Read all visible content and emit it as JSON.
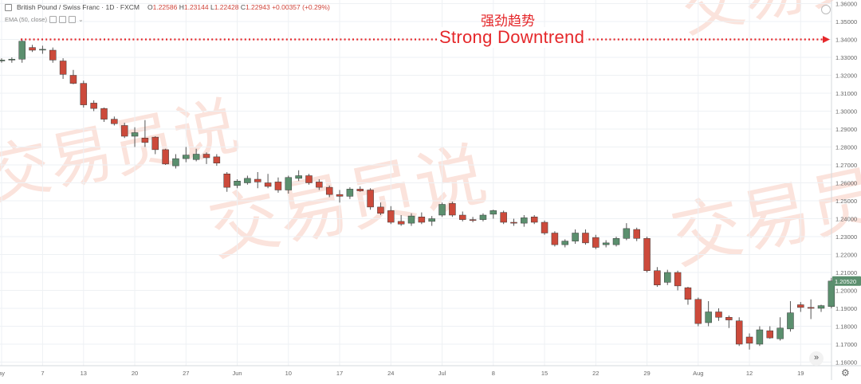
{
  "header": {
    "symbol": "British Pound / Swiss Franc · 1D · FXCM",
    "open_label": "O",
    "open": "1.22586",
    "high_label": "H",
    "high": "1.23144",
    "low_label": "L",
    "low": "1.22428",
    "close_label": "C",
    "close": "1.22943",
    "change": "+0.00357 (+0.29%)"
  },
  "indicator": {
    "label": "EMA (50, close)"
  },
  "annotation": {
    "chinese": "强劲趋势",
    "english": "Strong Downtrend"
  },
  "watermark": {
    "text": "交易员说"
  },
  "colors": {
    "up": "#5b8f6e",
    "down": "#cc4a3b",
    "accent": "#e5272a",
    "grid": "#eef1f4",
    "axis_text": "#666666",
    "price_tag_bg": "#5b8f6e"
  },
  "icons": {
    "nav": "double-chevron-right-icon",
    "settings": "gear-icon"
  },
  "nav_label": "»",
  "settings_label": "⚙",
  "chart_data": {
    "type": "candlestick",
    "title": "British Pound / Swiss Franc · 1D · FXCM",
    "y_ticks": [
      "1.36000",
      "1.35000",
      "1.34000",
      "1.33000",
      "1.32000",
      "1.31000",
      "1.30000",
      "1.29000",
      "1.28000",
      "1.27000",
      "1.26000",
      "1.25000",
      "1.24000",
      "1.23000",
      "1.22000",
      "1.21000",
      "1.20000",
      "1.19000",
      "1.18000",
      "1.17000",
      "1.16000"
    ],
    "ylim": [
      1.158,
      1.362
    ],
    "x_ticks": [
      {
        "label": "ay",
        "idx": 0
      },
      {
        "label": "7",
        "idx": 4
      },
      {
        "label": "13",
        "idx": 8
      },
      {
        "label": "20",
        "idx": 13
      },
      {
        "label": "27",
        "idx": 18
      },
      {
        "label": "Jun",
        "idx": 23
      },
      {
        "label": "10",
        "idx": 28
      },
      {
        "label": "17",
        "idx": 33
      },
      {
        "label": "24",
        "idx": 38
      },
      {
        "label": "Jul",
        "idx": 43
      },
      {
        "label": "8",
        "idx": 48
      },
      {
        "label": "15",
        "idx": 53
      },
      {
        "label": "22",
        "idx": 58
      },
      {
        "label": "29",
        "idx": 63
      },
      {
        "label": "Aug",
        "idx": 68
      },
      {
        "label": "12",
        "idx": 73
      },
      {
        "label": "19",
        "idx": 78
      }
    ],
    "last_price": "1.20520",
    "annotation": "Strong Downtrend",
    "candles": [
      [
        1.328,
        1.3295,
        1.327,
        1.3285
      ],
      [
        1.3285,
        1.33,
        1.327,
        1.329
      ],
      [
        1.329,
        1.3405,
        1.327,
        1.339
      ],
      [
        1.3355,
        1.337,
        1.333,
        1.334
      ],
      [
        1.3345,
        1.3365,
        1.332,
        1.3345
      ],
      [
        1.334,
        1.3355,
        1.327,
        1.3285
      ],
      [
        1.328,
        1.3295,
        1.318,
        1.3205
      ],
      [
        1.32,
        1.323,
        1.315,
        1.3155
      ],
      [
        1.3155,
        1.317,
        1.302,
        1.3035
      ],
      [
        1.3045,
        1.306,
        1.3,
        1.3015
      ],
      [
        1.3015,
        1.302,
        1.294,
        1.2955
      ],
      [
        1.2955,
        1.297,
        1.292,
        1.293
      ],
      [
        1.292,
        1.2935,
        1.285,
        1.286
      ],
      [
        1.286,
        1.291,
        1.28,
        1.288
      ],
      [
        1.285,
        1.295,
        1.28,
        1.2825
      ],
      [
        1.2855,
        1.286,
        1.276,
        1.2785
      ],
      [
        1.2785,
        1.279,
        1.27,
        1.2705
      ],
      [
        1.2695,
        1.276,
        1.268,
        1.2735
      ],
      [
        1.2735,
        1.28,
        1.2715,
        1.2755
      ],
      [
        1.273,
        1.279,
        1.272,
        1.276
      ],
      [
        1.276,
        1.277,
        1.2705,
        1.274
      ],
      [
        1.2745,
        1.276,
        1.2695,
        1.271
      ],
      [
        1.265,
        1.266,
        1.255,
        1.2575
      ],
      [
        1.2585,
        1.262,
        1.257,
        1.261
      ],
      [
        1.26,
        1.264,
        1.259,
        1.2625
      ],
      [
        1.262,
        1.266,
        1.257,
        1.2605
      ],
      [
        1.26,
        1.265,
        1.257,
        1.258
      ],
      [
        1.2605,
        1.263,
        1.2545,
        1.256
      ],
      [
        1.256,
        1.264,
        1.254,
        1.263
      ],
      [
        1.2625,
        1.267,
        1.261,
        1.264
      ],
      [
        1.264,
        1.265,
        1.259,
        1.26
      ],
      [
        1.2605,
        1.262,
        1.256,
        1.2575
      ],
      [
        1.2575,
        1.2585,
        1.252,
        1.2535
      ],
      [
        1.2535,
        1.256,
        1.249,
        1.2525
      ],
      [
        1.2525,
        1.2575,
        1.251,
        1.2565
      ],
      [
        1.2565,
        1.258,
        1.255,
        1.2555
      ],
      [
        1.256,
        1.257,
        1.245,
        1.2465
      ],
      [
        1.2465,
        1.249,
        1.242,
        1.243
      ],
      [
        1.2445,
        1.247,
        1.237,
        1.238
      ],
      [
        1.2385,
        1.242,
        1.236,
        1.237
      ],
      [
        1.2375,
        1.243,
        1.236,
        1.2415
      ],
      [
        1.241,
        1.2435,
        1.237,
        1.238
      ],
      [
        1.2385,
        1.2415,
        1.236,
        1.24
      ],
      [
        1.242,
        1.249,
        1.241,
        1.248
      ],
      [
        1.2485,
        1.2495,
        1.241,
        1.242
      ],
      [
        1.242,
        1.244,
        1.2385,
        1.2395
      ],
      [
        1.2395,
        1.241,
        1.238,
        1.239
      ],
      [
        1.2395,
        1.243,
        1.2385,
        1.242
      ],
      [
        1.2425,
        1.245,
        1.24,
        1.2445
      ],
      [
        1.2435,
        1.2445,
        1.237,
        1.238
      ],
      [
        1.238,
        1.24,
        1.236,
        1.2375
      ],
      [
        1.2375,
        1.242,
        1.2355,
        1.2405
      ],
      [
        1.241,
        1.242,
        1.237,
        1.238
      ],
      [
        1.238,
        1.239,
        1.231,
        1.232
      ],
      [
        1.232,
        1.233,
        1.2245,
        1.2255
      ],
      [
        1.2255,
        1.2285,
        1.224,
        1.2275
      ],
      [
        1.2275,
        1.234,
        1.226,
        1.232
      ],
      [
        1.232,
        1.234,
        1.2255,
        1.2265
      ],
      [
        1.2295,
        1.231,
        1.223,
        1.224
      ],
      [
        1.2255,
        1.228,
        1.224,
        1.2265
      ],
      [
        1.2255,
        1.23,
        1.2245,
        1.229
      ],
      [
        1.229,
        1.2375,
        1.228,
        1.2345
      ],
      [
        1.234,
        1.235,
        1.2275,
        1.229
      ],
      [
        1.229,
        1.23,
        1.21,
        1.211
      ],
      [
        1.211,
        1.213,
        1.202,
        1.203
      ],
      [
        1.2045,
        1.2115,
        1.203,
        1.21
      ],
      [
        1.21,
        1.211,
        1.2,
        1.2025
      ],
      [
        1.2015,
        1.202,
        1.192,
        1.195
      ],
      [
        1.195,
        1.196,
        1.18,
        1.1815
      ],
      [
        1.182,
        1.194,
        1.18,
        1.188
      ],
      [
        1.188,
        1.19,
        1.183,
        1.185
      ],
      [
        1.185,
        1.186,
        1.179,
        1.1835
      ],
      [
        1.183,
        1.185,
        1.169,
        1.17
      ],
      [
        1.174,
        1.176,
        1.167,
        1.1705
      ],
      [
        1.17,
        1.18,
        1.169,
        1.178
      ],
      [
        1.1775,
        1.18,
        1.173,
        1.1735
      ],
      [
        1.173,
        1.185,
        1.172,
        1.179
      ],
      [
        1.1785,
        1.194,
        1.177,
        1.1875
      ],
      [
        1.192,
        1.1935,
        1.188,
        1.1905
      ],
      [
        1.1905,
        1.195,
        1.184,
        1.19
      ],
      [
        1.19,
        1.192,
        1.188,
        1.1915
      ],
      [
        1.191,
        1.207,
        1.19,
        1.2052
      ]
    ]
  }
}
